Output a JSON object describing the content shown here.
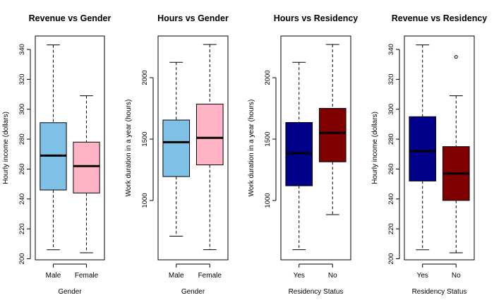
{
  "chart_data": [
    {
      "type": "box",
      "title": "Revenue vs Gender",
      "xlabel": "Gender",
      "ylabel": "Hourly income (dollars)",
      "ylim": [
        200,
        345
      ],
      "yticks": [
        200,
        220,
        240,
        260,
        280,
        300,
        320,
        340
      ],
      "categories": [
        "Male",
        "Female"
      ],
      "colors": [
        "#7ec0e6",
        "#ffb3c5"
      ],
      "boxes": [
        {
          "min": 206,
          "q1": 246,
          "median": 269,
          "q3": 291,
          "max": 343
        },
        {
          "min": 204,
          "q1": 244,
          "median": 262,
          "q3": 278,
          "max": 309
        }
      ],
      "outliers": [
        [],
        []
      ]
    },
    {
      "type": "box",
      "title": "Hours vs Gender",
      "xlabel": "Gender",
      "ylabel": "Work duration in a year (hours)",
      "ylim": [
        600,
        2300
      ],
      "yticks": [
        1000,
        1500,
        2000
      ],
      "categories": [
        "Male",
        "Female"
      ],
      "colors": [
        "#7ec0e6",
        "#ffb3c5"
      ],
      "boxes": [
        {
          "min": 710,
          "q1": 1195,
          "median": 1475,
          "q3": 1655,
          "max": 2125
        },
        {
          "min": 600,
          "q1": 1290,
          "median": 1510,
          "q3": 1785,
          "max": 2270
        }
      ],
      "outliers": [
        [],
        []
      ]
    },
    {
      "type": "box",
      "title": "Hours vs Residency",
      "xlabel": "Residency Status",
      "ylabel": "Work duration in a year (hours)",
      "ylim": [
        600,
        2300
      ],
      "yticks": [
        1000,
        1500,
        2000
      ],
      "categories": [
        "Yes",
        "No"
      ],
      "colors": [
        "#00008b",
        "#800000"
      ],
      "boxes": [
        {
          "min": 600,
          "q1": 1120,
          "median": 1385,
          "q3": 1635,
          "max": 2125
        },
        {
          "min": 885,
          "q1": 1315,
          "median": 1550,
          "q3": 1750,
          "max": 2270
        }
      ],
      "outliers": [
        [],
        []
      ]
    },
    {
      "type": "box",
      "title": "Revenue vs Residency",
      "xlabel": "Residency Status",
      "ylabel": "Hourly income (dollars)",
      "ylim": [
        200,
        345
      ],
      "yticks": [
        200,
        220,
        240,
        260,
        280,
        300,
        320,
        340
      ],
      "categories": [
        "Yes",
        "No"
      ],
      "colors": [
        "#00008b",
        "#800000"
      ],
      "boxes": [
        {
          "min": 206,
          "q1": 252,
          "median": 272,
          "q3": 295,
          "max": 343
        },
        {
          "min": 204,
          "q1": 239,
          "median": 257,
          "q3": 275,
          "max": 309
        }
      ],
      "outliers": [
        [],
        [
          335
        ]
      ]
    }
  ]
}
